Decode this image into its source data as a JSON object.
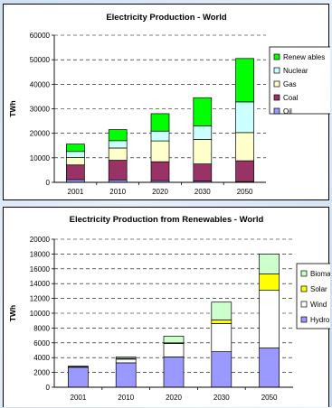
{
  "chart_data": [
    {
      "type": "bar",
      "stacked": true,
      "title": "Electricity Production - World",
      "xlabel": "",
      "ylabel": "TWh",
      "ylim": [
        0,
        60000
      ],
      "yticks": [
        "0",
        "10000",
        "20000",
        "30000",
        "40000",
        "50000",
        "60000"
      ],
      "categories": [
        "2001",
        "2010",
        "2020",
        "2030",
        "2050"
      ],
      "grid": true,
      "legend_position": "right",
      "series": [
        {
          "name": "Oil",
          "color": "#9999ff",
          "values": [
            1100,
            1000,
            700,
            500,
            300
          ]
        },
        {
          "name": "Coal",
          "color": "#993366",
          "values": [
            6000,
            8000,
            7700,
            7000,
            8500
          ]
        },
        {
          "name": "Gas",
          "color": "#ffffcc",
          "values": [
            3000,
            5000,
            8500,
            10000,
            11500
          ]
        },
        {
          "name": "Nuclear",
          "color": "#ccffff",
          "values": [
            2500,
            3000,
            4000,
            5500,
            12500
          ]
        },
        {
          "name": "Renewables",
          "color": "#00ff00",
          "values": [
            3000,
            4500,
            7100,
            11500,
            17700
          ]
        }
      ],
      "legend_labels": [
        "Renew ables",
        "Nuclear",
        "Gas",
        "Coal",
        "Oil"
      ]
    },
    {
      "type": "bar",
      "stacked": true,
      "title": "Electricity Production from Renewables - World",
      "xlabel": "",
      "ylabel": "TWh",
      "ylim": [
        0,
        20000
      ],
      "yticks": [
        "0",
        "2000",
        "4000",
        "6000",
        "8000",
        "10000",
        "12000",
        "14000",
        "16000",
        "18000",
        "20000"
      ],
      "categories": [
        "2001",
        "2010",
        "2020",
        "2030",
        "2050"
      ],
      "grid": true,
      "legend_position": "right",
      "series": [
        {
          "name": "Hydro",
          "color": "#9999ff",
          "values": [
            2700,
            3300,
            4100,
            4800,
            5300
          ]
        },
        {
          "name": "Wind",
          "color": "#ffffff",
          "values": [
            50,
            500,
            1800,
            3800,
            7800
          ]
        },
        {
          "name": "Solar",
          "color": "#ffff00",
          "values": [
            0,
            100,
            100,
            500,
            2200
          ]
        },
        {
          "name": "Biomass",
          "color": "#ccffcc",
          "values": [
            100,
            200,
            900,
            2400,
            2700
          ]
        }
      ],
      "legend_labels": [
        "Biomass",
        "Solar",
        "Wind",
        "Hydro"
      ]
    }
  ]
}
